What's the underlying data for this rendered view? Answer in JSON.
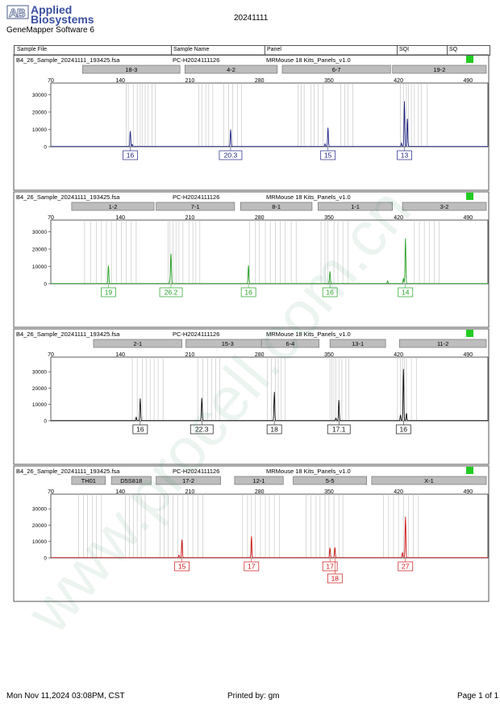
{
  "header": {
    "logo_text": "AB",
    "brand_line1": "Applied",
    "brand_line2": "Biosystems",
    "app_name": "GeneMapper Software 6",
    "title": "20241111"
  },
  "columns": {
    "sample_file": "Sample File",
    "sample_name": "Sample Name",
    "panel": "Panel",
    "sqi": "SQI",
    "sq": "SQ"
  },
  "footer": {
    "date": "Mon Nov 11,2024 03:08PM, CST",
    "printed_by": "Printed by: gm",
    "page": "Page 1 of 1"
  },
  "watermark": "www.procell.com.cn",
  "chart_data": [
    {
      "type": "line",
      "color": "#1c2280",
      "sample_file": "B4_26_Sample_20241111_193425.fsa",
      "sample_name": "PC-H2024111126",
      "panel": "MRMouse 18 Kits_Panels_v1.0",
      "sq_color": "#22cc22",
      "x_ticks": [
        70,
        140,
        210,
        280,
        350,
        420,
        490
      ],
      "y_ticks": [
        0,
        10000,
        20000,
        30000
      ],
      "xlim": [
        70,
        510
      ],
      "ylim": [
        0,
        33000
      ],
      "markers": [
        {
          "name": "18-3",
          "start": 102,
          "end": 200
        },
        {
          "name": "4-2",
          "start": 205,
          "end": 298
        },
        {
          "name": "6-7",
          "start": 303,
          "end": 412
        },
        {
          "name": "19-2",
          "start": 414,
          "end": 513
        }
      ],
      "peaks": [
        {
          "x": 150,
          "y": 8800,
          "label": "16"
        },
        {
          "x": 152,
          "y": 1200,
          "label": ""
        },
        {
          "x": 251,
          "y": 9800,
          "label": "20.3"
        },
        {
          "x": 349,
          "y": 10800,
          "label": "15"
        },
        {
          "x": 346,
          "y": 1500,
          "label": ""
        },
        {
          "x": 426,
          "y": 26000,
          "label": "13"
        },
        {
          "x": 423,
          "y": 2000,
          "label": ""
        },
        {
          "x": 429,
          "y": 16000,
          "label": ""
        }
      ],
      "bins": [
        146,
        148,
        153,
        157,
        160,
        162,
        165,
        168,
        172,
        175,
        219,
        222,
        226,
        229,
        233,
        244,
        249,
        253,
        258,
        262,
        319,
        322,
        325,
        332,
        335,
        339,
        344,
        362,
        366,
        369,
        374,
        422,
        425,
        428,
        430,
        433,
        436,
        440,
        443,
        449
      ]
    },
    {
      "type": "line",
      "color": "#22a022",
      "sample_file": "B4_26_Sample_20241111_193425.fsa",
      "sample_name": "PC-H2024111126",
      "panel": "MRMouse 18 Kits_Panels_v1.0",
      "sq_color": "#22cc22",
      "x_ticks": [
        70,
        140,
        210,
        280,
        350,
        420,
        490
      ],
      "y_ticks": [
        0,
        10000,
        20000,
        30000
      ],
      "xlim": [
        70,
        510
      ],
      "ylim": [
        0,
        33000
      ],
      "markers": [
        {
          "name": "1-2",
          "start": 91,
          "end": 174
        },
        {
          "name": "7-1",
          "start": 176,
          "end": 255
        },
        {
          "name": "8-1",
          "start": 261,
          "end": 333
        },
        {
          "name": "1-1",
          "start": 339,
          "end": 414
        },
        {
          "name": "3-2",
          "start": 424,
          "end": 527
        }
      ],
      "peaks": [
        {
          "x": 128,
          "y": 10200,
          "label": "19"
        },
        {
          "x": 190,
          "y": 2500,
          "label": ""
        },
        {
          "x": 191,
          "y": 17000,
          "label": "26.2"
        },
        {
          "x": 269,
          "y": 10500,
          "label": "16"
        },
        {
          "x": 351,
          "y": 7000,
          "label": "16"
        },
        {
          "x": 427,
          "y": 26000,
          "label": "14"
        },
        {
          "x": 425,
          "y": 3000,
          "label": ""
        },
        {
          "x": 409,
          "y": 1500,
          "label": ""
        }
      ],
      "bins": [
        104,
        110,
        116,
        121,
        126,
        131,
        136,
        141,
        146,
        151,
        156,
        188,
        190,
        193,
        196,
        199,
        203,
        209,
        213,
        216,
        220,
        270,
        276,
        280,
        286,
        291,
        296,
        301,
        306,
        312,
        317,
        342,
        346,
        349,
        355,
        359,
        364,
        369,
        436,
        441,
        446,
        451,
        456,
        461
      ]
    },
    {
      "type": "line",
      "color": "#111111",
      "sample_file": "B4_26_Sample_20241111_193425.fsa",
      "sample_name": "PC-H2024111126",
      "panel": "MRMouse 18 Kits_Panels_v1.0",
      "sq_color": "#22cc22",
      "x_ticks": [
        70,
        140,
        210,
        280,
        350,
        420,
        490
      ],
      "y_ticks": [
        0,
        10000,
        20000,
        30000
      ],
      "xlim": [
        70,
        510
      ],
      "ylim": [
        0,
        35000
      ],
      "markers": [
        {
          "name": "2-1",
          "start": 113,
          "end": 202
        },
        {
          "name": "15-3",
          "start": 206,
          "end": 290
        },
        {
          "name": "6-4",
          "start": 282,
          "end": 340
        },
        {
          "name": "13-1",
          "start": 351,
          "end": 407
        },
        {
          "name": "11-2",
          "start": 421,
          "end": 523
        }
      ],
      "peaks": [
        {
          "x": 160,
          "y": 13500,
          "label": "16"
        },
        {
          "x": 156,
          "y": 2000,
          "label": ""
        },
        {
          "x": 222,
          "y": 13800,
          "label": "22.3"
        },
        {
          "x": 295,
          "y": 17500,
          "label": "18"
        },
        {
          "x": 360,
          "y": 12500,
          "label": "17.1"
        },
        {
          "x": 357,
          "y": 1500,
          "label": ""
        },
        {
          "x": 425,
          "y": 31500,
          "label": "16"
        },
        {
          "x": 422,
          "y": 3500,
          "label": ""
        },
        {
          "x": 428,
          "y": 4500,
          "label": ""
        }
      ],
      "bins": [
        152,
        157,
        162,
        166,
        170,
        174,
        178,
        183,
        218,
        223,
        228,
        232,
        236,
        240,
        288,
        292,
        296,
        299,
        302,
        306,
        351,
        353,
        355,
        357,
        360,
        363,
        367,
        370,
        419,
        422,
        424,
        426,
        428,
        433,
        438
      ]
    },
    {
      "type": "line",
      "color": "#cc1111",
      "sample_file": "B4_26_Sample_20241111_193425.fsa",
      "sample_name": "PC-H2024111126",
      "panel": "MRMouse 18 Kits_Panels_v1.0",
      "sq_color": "#22cc22",
      "x_ticks": [
        70,
        140,
        210,
        280,
        350,
        420,
        490
      ],
      "y_ticks": [
        0,
        10000,
        20000,
        30000
      ],
      "xlim": [
        70,
        510
      ],
      "ylim": [
        0,
        35000
      ],
      "markers": [
        {
          "name": "TH01",
          "start": 91,
          "end": 125
        },
        {
          "name": "D5S818",
          "start": 131,
          "end": 171
        },
        {
          "name": "17-2",
          "start": 176,
          "end": 241
        },
        {
          "name": "12-1",
          "start": 255,
          "end": 304
        },
        {
          "name": "5-5",
          "start": 314,
          "end": 388
        },
        {
          "name": "X-1",
          "start": 393,
          "end": 518
        }
      ],
      "peaks": [
        {
          "x": 202,
          "y": 11000,
          "label": "15"
        },
        {
          "x": 199,
          "y": 1500,
          "label": ""
        },
        {
          "x": 272,
          "y": 13000,
          "label": "17"
        },
        {
          "x": 351,
          "y": 6000,
          "label": "17"
        },
        {
          "x": 356,
          "y": 6200,
          "label": "18"
        },
        {
          "x": 427,
          "y": 25000,
          "label": "27"
        },
        {
          "x": 424,
          "y": 3000,
          "label": ""
        }
      ],
      "bins": [
        98,
        103,
        107,
        112,
        116,
        121,
        145,
        149,
        153,
        157,
        161,
        165,
        180,
        184,
        188,
        193,
        198,
        203,
        208,
        213,
        218,
        223,
        263,
        268,
        272,
        276,
        281,
        286,
        290,
        295,
        300,
        327,
        332,
        337,
        341,
        346,
        350,
        355,
        360,
        364,
        405,
        410,
        415,
        420,
        425,
        430,
        435,
        440
      ]
    }
  ]
}
